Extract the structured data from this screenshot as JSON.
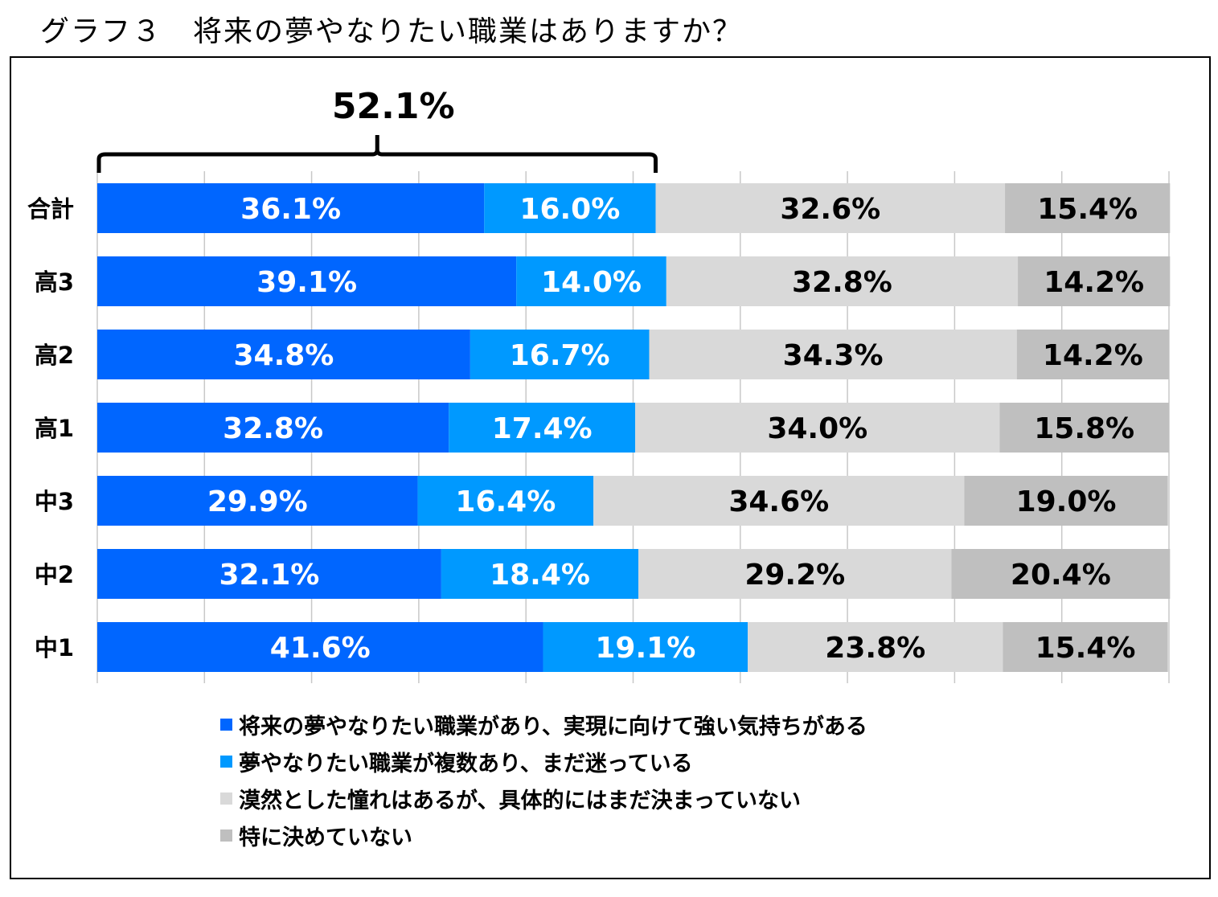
{
  "title": "グラフ３　将来の夢やなりたい職業はありますか？",
  "chart_data": {
    "type": "bar",
    "orientation": "horizontal",
    "stacked": true,
    "percent_stacked": true,
    "categories": [
      "合計",
      "高3",
      "高2",
      "高1",
      "中3",
      "中2",
      "中1"
    ],
    "series": [
      {
        "name": "将来の夢やなりたい職業があり、実現に向けて強い気持ちがある",
        "color": "#0066FF",
        "values": [
          36.1,
          39.1,
          34.8,
          32.8,
          29.9,
          32.1,
          41.6
        ]
      },
      {
        "name": "夢やなりたい職業が複数あり、まだ迷っている",
        "color": "#0099FF",
        "values": [
          16.0,
          14.0,
          16.7,
          17.4,
          16.4,
          18.4,
          19.1
        ]
      },
      {
        "name": "漠然とした憧れはあるが、具体的にはまだ決まっていない",
        "color": "#D9D9D9",
        "values": [
          32.6,
          32.8,
          34.3,
          34.0,
          34.6,
          29.2,
          23.8
        ]
      },
      {
        "name": "特に決めていない",
        "color": "#BFBFBF",
        "values": [
          15.4,
          14.2,
          14.2,
          15.8,
          19.0,
          20.4,
          15.4
        ]
      }
    ],
    "label_colors": [
      "#FFFFFF",
      "#FFFFFF",
      "#000000",
      "#000000"
    ],
    "xlim": [
      0,
      100
    ],
    "grid": true,
    "legend_position": "bottom",
    "annotation": {
      "text": "52.1%",
      "category": "合計",
      "range": [
        0,
        52.1
      ]
    }
  }
}
